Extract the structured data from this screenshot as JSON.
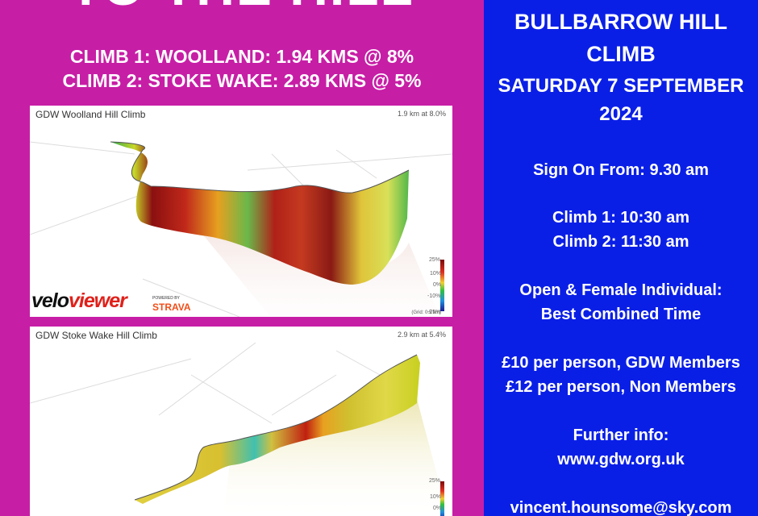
{
  "headline": "TO THE HILL",
  "climbs": [
    "CLIMB 1: WOOLLAND: 1.94 KMS @ 8%",
    "CLIMB 2: STOKE WAKE: 2.89 KMS @ 5%"
  ],
  "panels": [
    {
      "title": "GDW Woolland Hill Climb",
      "stat": "1.9 km at 8.0%",
      "legend": [
        "25%",
        "10%",
        "0%",
        "-10%",
        "-25%"
      ],
      "grid_note": "(Grid: 0.5 km)"
    },
    {
      "title": "GDW Stoke Wake Hill Climb",
      "stat": "2.9 km at 5.4%",
      "legend": [
        "25%",
        "10%",
        "0%"
      ]
    }
  ],
  "brand": {
    "velo_a": "velo",
    "velo_b": "viewer",
    "powered": "POWERED BY",
    "strava": "STRAVA"
  },
  "event": {
    "title_1": "BULLBARROW HILL",
    "title_2": "CLIMB",
    "date_1": "SATURDAY 7 SEPTEMBER",
    "date_2": "2024",
    "sign_on": "Sign On From: 9.30 am",
    "climb1_time": "Climb 1: 10:30 am",
    "climb2_time": "Climb 2: 11:30 am",
    "category_1": "Open & Female Individual:",
    "category_2": "Best Combined Time",
    "fee_members": "£10 per person, GDW Members",
    "fee_non_members": "£12 per person, Non Members",
    "info_label": "Further info:",
    "website": "www.gdw.org.uk",
    "email": "vincent.hounsome@sky.com"
  },
  "colors": {
    "left_bg": "#c71ea6",
    "right_bg": "#0a1fe6"
  }
}
